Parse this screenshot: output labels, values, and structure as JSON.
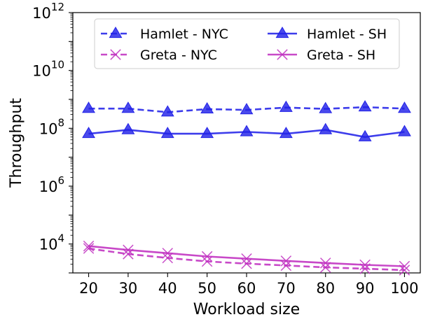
{
  "chart_data": {
    "type": "line",
    "title": "",
    "xlabel": "Workload size",
    "ylabel": "Throughput",
    "x": [
      20,
      30,
      40,
      50,
      60,
      70,
      80,
      90,
      100
    ],
    "xlim": [
      16,
      104
    ],
    "ylim": [
      1000,
      1000000000000
    ],
    "yscale": "log",
    "yticks": [
      {
        "value": 10000,
        "base": "10",
        "exp": "4"
      },
      {
        "value": 1000000,
        "base": "10",
        "exp": "6"
      },
      {
        "value": 100000000,
        "base": "10",
        "exp": "8"
      },
      {
        "value": 10000000000,
        "base": "10",
        "exp": "10"
      },
      {
        "value": 1000000000000,
        "base": "10",
        "exp": "12"
      }
    ],
    "grid": false,
    "legend_position": "top",
    "series": [
      {
        "name": "Hamlet - NYC",
        "color": "#2222e8",
        "marker": "triangle",
        "dash": "dashed",
        "values": [
          480000000,
          480000000,
          360000000,
          460000000,
          430000000,
          520000000,
          470000000,
          540000000,
          480000000
        ]
      },
      {
        "name": "Greta - NYC",
        "color": "#c030c0",
        "marker": "x",
        "dash": "dashed",
        "values": [
          7000,
          4500,
          3300,
          2500,
          2100,
          1800,
          1550,
          1400,
          1250
        ]
      },
      {
        "name": "Hamlet - SH",
        "color": "#2222e8",
        "marker": "triangle",
        "dash": "solid",
        "values": [
          65000000,
          88000000,
          65000000,
          65000000,
          75000000,
          65000000,
          88000000,
          50000000,
          75000000
        ]
      },
      {
        "name": "Greta - SH",
        "color": "#c030c0",
        "marker": "x",
        "dash": "solid",
        "values": [
          8500,
          6200,
          4800,
          3700,
          3100,
          2600,
          2200,
          1900,
          1700
        ]
      }
    ]
  }
}
